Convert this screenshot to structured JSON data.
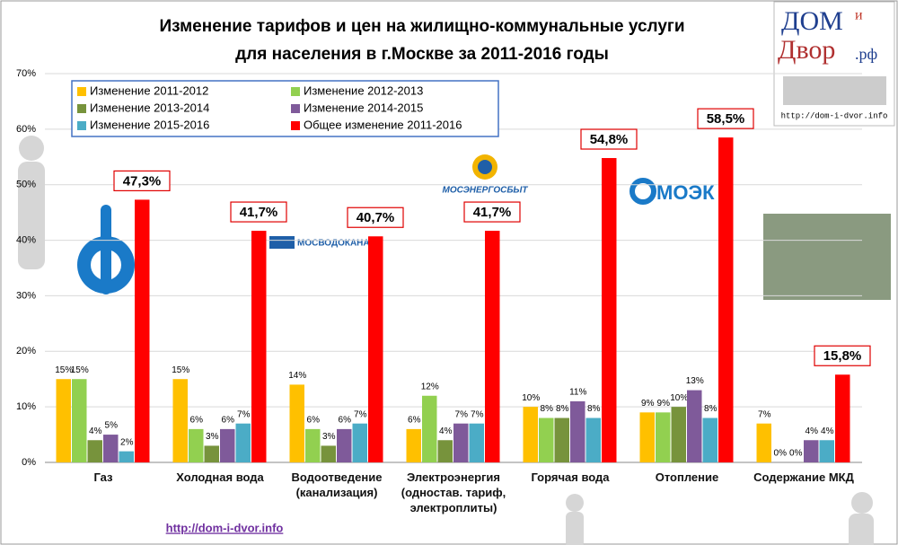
{
  "chart_data": {
    "type": "bar",
    "title": "Изменение тарифов и цен на жилищно-коммунальные услуги",
    "subtitle": "для населения в г.Москве за 2011-2016 годы",
    "categories": [
      "Газ",
      "Холодная вода",
      "Водоотведение\n(канализация)",
      "Электроэнергия\n(одностав. тариф,\nэлектроплиты)",
      "Горячая вода",
      "Отопление",
      "Содержание МКД"
    ],
    "series": [
      {
        "name": "Изменение 2011-2012",
        "color": "#ffc000",
        "values": [
          15,
          15,
          14,
          6,
          10,
          9,
          7
        ],
        "value_labels": [
          "15%",
          "15%",
          "14%",
          "6%",
          "10%",
          "9%",
          "7%"
        ]
      },
      {
        "name": "Изменение 2012-2013",
        "color": "#92d050",
        "values": [
          15,
          6,
          6,
          12,
          8,
          9,
          0
        ],
        "value_labels": [
          "15%",
          "6%",
          "6%",
          "12%",
          "8%",
          "9%",
          "0%"
        ]
      },
      {
        "name": "Изменение 2013-2014",
        "color": "#77933c",
        "values": [
          4,
          3,
          3,
          4,
          8,
          10,
          0
        ],
        "value_labels": [
          "4%",
          "3%",
          "3%",
          "4%",
          "8%",
          "10%",
          "0%"
        ]
      },
      {
        "name": "Изменение 2014-2015",
        "color": "#7f5a9a",
        "values": [
          5,
          6,
          6,
          7,
          11,
          13,
          4
        ],
        "value_labels": [
          "5%",
          "6%",
          "6%",
          "7%",
          "11%",
          "13%",
          "4%"
        ]
      },
      {
        "name": "Изменение 2015-2016",
        "color": "#4bacc6",
        "values": [
          2,
          7,
          7,
          7,
          8,
          8,
          4
        ],
        "value_labels": [
          "2%",
          "7%",
          "7%",
          "7%",
          "8%",
          "8%",
          "4%"
        ]
      },
      {
        "name": "Общее изменение 2011-2016",
        "color": "#ff0000",
        "values": [
          47.3,
          41.7,
          40.7,
          41.7,
          54.8,
          58.5,
          15.8
        ],
        "value_labels": [
          "47,3%",
          "41,7%",
          "40,7%",
          "41,7%",
          "54,8%",
          "58,5%",
          "15,8%"
        ]
      }
    ],
    "ylim": [
      0,
      70
    ],
    "yticks": [
      {
        "value": 0,
        "label": "0%"
      },
      {
        "value": 10,
        "label": "10%"
      },
      {
        "value": 20,
        "label": "20%"
      },
      {
        "value": 30,
        "label": "30%"
      },
      {
        "value": 40,
        "label": "40%"
      },
      {
        "value": 50,
        "label": "50%"
      },
      {
        "value": 60,
        "label": "60%"
      },
      {
        "value": 70,
        "label": "70%"
      }
    ],
    "grid": true,
    "legend": "top-left"
  },
  "logo": {
    "part1": "ДОМ",
    "part2": "и",
    "part3": "Двор",
    "part4": ".рф",
    "url": "http://dom-i-dvor.info"
  },
  "brands": {
    "vodokanal": "МОСВОДОКАНАЛ",
    "energosbyt": "МОСЭНЕРГОСБЫТ",
    "moek": "МОЭК"
  },
  "footer": "http://dom-i-dvor.info"
}
